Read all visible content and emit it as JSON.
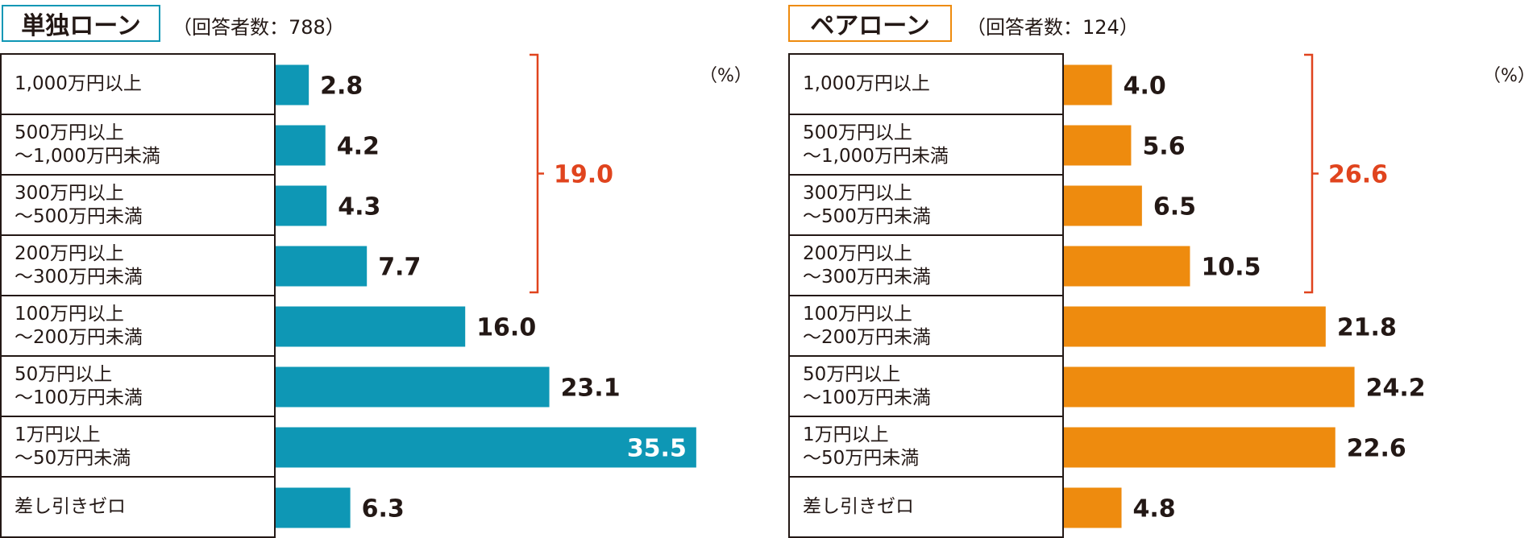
{
  "categories": [
    "1,000万円以上",
    "500万円以上\n～1,000万円未満",
    "300万円以上\n～500万円未満",
    "200万円以上\n～300万円未満",
    "100万円以上\n～200万円未満",
    "50万円以上\n～100万円未満",
    "1万円以上\n～50万円未満",
    "差し引きゼロ"
  ],
  "unit_label": "（%）",
  "bracket_color": "#e0441e",
  "chart_data": [
    {
      "type": "bar",
      "orientation": "horizontal",
      "title": "単独ローン",
      "subtitle": "（回答者数：788）",
      "color": "#0e97b5",
      "categories": [
        "1,000万円以上",
        "500万円以上～1,000万円未満",
        "300万円以上～500万円未満",
        "200万円以上～300万円未満",
        "100万円以上～200万円未満",
        "50万円以上～100万円未満",
        "1万円以上～50万円未満",
        "差し引きゼロ"
      ],
      "values": [
        2.8,
        4.2,
        4.3,
        7.7,
        16.0,
        23.1,
        35.5,
        6.3
      ],
      "value_labels": [
        "2.8",
        "4.2",
        "4.3",
        "7.7",
        "16.0",
        "23.1",
        "35.5",
        "6.3"
      ],
      "bracket_total": "19.0",
      "xlim": [
        0,
        36
      ]
    },
    {
      "type": "bar",
      "orientation": "horizontal",
      "title": "ペアローン",
      "subtitle": "（回答者数：124）",
      "color": "#ee8b0e",
      "categories": [
        "1,000万円以上",
        "500万円以上～1,000万円未満",
        "300万円以上～500万円未満",
        "200万円以上～300万円未満",
        "100万円以上～200万円未満",
        "50万円以上～100万円未満",
        "1万円以上～50万円未満",
        "差し引きゼロ"
      ],
      "values": [
        4.0,
        5.6,
        6.5,
        10.5,
        21.8,
        24.2,
        22.6,
        4.8
      ],
      "value_labels": [
        "4.0",
        "5.6",
        "6.5",
        "10.5",
        "21.8",
        "24.2",
        "22.6",
        "4.8"
      ],
      "bracket_total": "26.6",
      "xlim": [
        0,
        36
      ]
    }
  ]
}
